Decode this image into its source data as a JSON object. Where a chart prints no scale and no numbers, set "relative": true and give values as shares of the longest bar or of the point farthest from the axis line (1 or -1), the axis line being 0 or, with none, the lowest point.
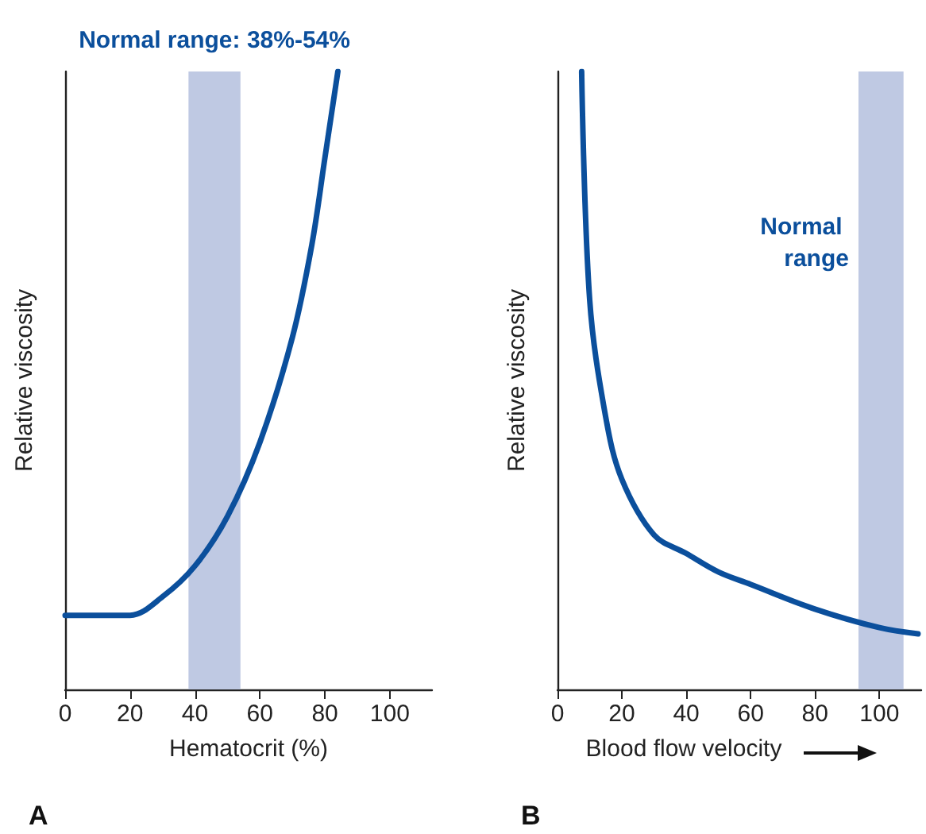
{
  "chart_data": [
    {
      "type": "line",
      "xlabel": "Hematocrit (%)",
      "ylabel": "Relative viscosity",
      "relative": true,
      "marker": "none",
      "color": "#0b4f9c",
      "x": [
        0,
        20,
        30,
        40,
        50,
        60,
        70,
        76,
        80,
        84
      ],
      "values": [
        0.12,
        0.12,
        0.15,
        0.2,
        0.28,
        0.4,
        0.57,
        0.72,
        0.86,
        1
      ],
      "xlim": [
        0,
        113
      ],
      "xticks": [
        0,
        20,
        40,
        60,
        80,
        100
      ],
      "bands": [
        {
          "axis": "x",
          "from": 38,
          "to": 54,
          "label": "Normal range: 38%-54%",
          "color": "#bfc9e3"
        }
      ],
      "annotations": [
        "A"
      ]
    },
    {
      "type": "line",
      "xlabel": "Blood flow velocity",
      "ylabel": "Relative viscosity",
      "relative": true,
      "marker": "none",
      "color": "#0b4f9c",
      "x": [
        7.5,
        10,
        15,
        20,
        30,
        40,
        50,
        60,
        80,
        100,
        112
      ],
      "values": [
        1,
        0.63,
        0.44,
        0.34,
        0.25,
        0.22,
        0.19,
        0.17,
        0.13,
        0.1,
        0.09
      ],
      "xlim": [
        0,
        113
      ],
      "xticks": [
        0,
        20,
        40,
        60,
        80,
        100
      ],
      "bands": [
        {
          "axis": "x",
          "from": 93.5,
          "to": 107.5,
          "label": "Normal range",
          "color": "#bfc9e3"
        }
      ],
      "annotations": [
        "B"
      ]
    }
  ]
}
